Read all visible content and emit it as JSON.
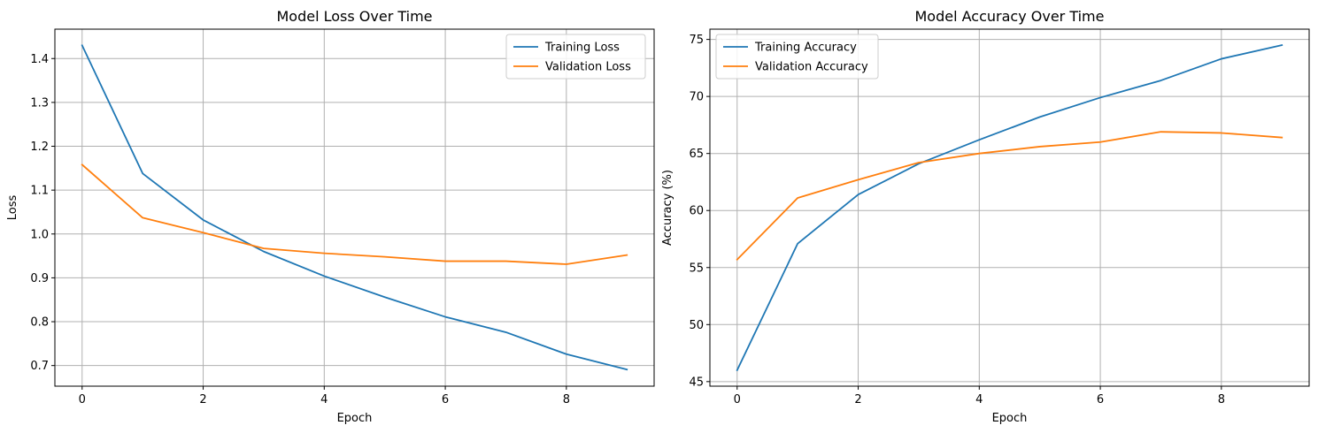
{
  "chart_data": [
    {
      "type": "line",
      "title": "Model Loss Over Time",
      "xlabel": "Epoch",
      "ylabel": "Loss",
      "x": [
        0,
        1,
        2,
        3,
        4,
        5,
        6,
        7,
        8,
        9
      ],
      "xlim": [
        -0.45,
        9.45
      ],
      "ylim": [
        0.653,
        1.467
      ],
      "xticks": [
        0,
        2,
        4,
        6,
        8
      ],
      "yticks": [
        0.7,
        0.8,
        0.9,
        1.0,
        1.1,
        1.2,
        1.3,
        1.4
      ],
      "ytick_labels": [
        "0.7",
        "0.8",
        "0.9",
        "1.0",
        "1.1",
        "1.2",
        "1.3",
        "1.4"
      ],
      "grid": true,
      "legend_position": "top-right",
      "series": [
        {
          "name": "Training Loss",
          "color": "#1f77b4",
          "values": [
            1.43,
            1.138,
            1.032,
            0.96,
            0.904,
            0.856,
            0.811,
            0.776,
            0.726,
            0.691
          ]
        },
        {
          "name": "Validation Loss",
          "color": "#ff7f0e",
          "values": [
            1.158,
            1.037,
            1.003,
            0.967,
            0.956,
            0.948,
            0.938,
            0.938,
            0.931,
            0.952
          ]
        }
      ]
    },
    {
      "type": "line",
      "title": "Model Accuracy Over Time",
      "xlabel": "Epoch",
      "ylabel": "Accuracy (%)",
      "x": [
        0,
        1,
        2,
        3,
        4,
        5,
        6,
        7,
        8,
        9
      ],
      "xlim": [
        -0.45,
        9.45
      ],
      "ylim": [
        44.6,
        75.9
      ],
      "xticks": [
        0,
        2,
        4,
        6,
        8
      ],
      "yticks": [
        45,
        50,
        55,
        60,
        65,
        70,
        75
      ],
      "ytick_labels": [
        "45",
        "50",
        "55",
        "60",
        "65",
        "70",
        "75"
      ],
      "grid": true,
      "legend_position": "top-left",
      "series": [
        {
          "name": "Training Accuracy",
          "color": "#1f77b4",
          "values": [
            46.0,
            57.1,
            61.4,
            64.1,
            66.2,
            68.2,
            69.9,
            71.4,
            73.3,
            74.5
          ]
        },
        {
          "name": "Validation Accuracy",
          "color": "#ff7f0e",
          "values": [
            55.7,
            61.1,
            62.7,
            64.2,
            65.0,
            65.6,
            66.0,
            66.9,
            66.8,
            66.4
          ]
        }
      ]
    }
  ]
}
